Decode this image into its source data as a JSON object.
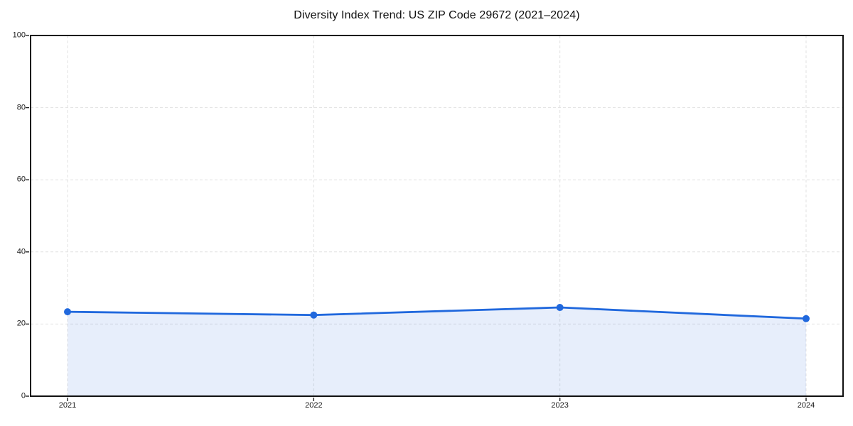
{
  "title": "Diversity Index Trend: US ZIP Code 29672 (2021–2024)",
  "chart_data": {
    "type": "line",
    "title": "Diversity Index Trend: US ZIP Code 29672 (2021–2024)",
    "categories": [
      "2021",
      "2022",
      "2023",
      "2024"
    ],
    "series": [
      {
        "name": "Diversity Index",
        "values": [
          23.4,
          22.5,
          24.6,
          21.5
        ]
      }
    ],
    "xlabel": "",
    "ylabel": "",
    "ylim": [
      0,
      100
    ],
    "yticks": [
      0,
      20,
      40,
      60,
      80,
      100
    ],
    "grid": true,
    "grid_style": "dashed",
    "legend": false,
    "area_fill": true,
    "markers": true
  },
  "colors": {
    "line": "#2068dd",
    "marker": "#2068dd",
    "fill": "rgba(32, 104, 221, 0.11)",
    "gridline": "#e1e1e1",
    "spine": "#111111",
    "tick": "#222222",
    "text": "#1a1a1a",
    "background": "#ffffff"
  }
}
